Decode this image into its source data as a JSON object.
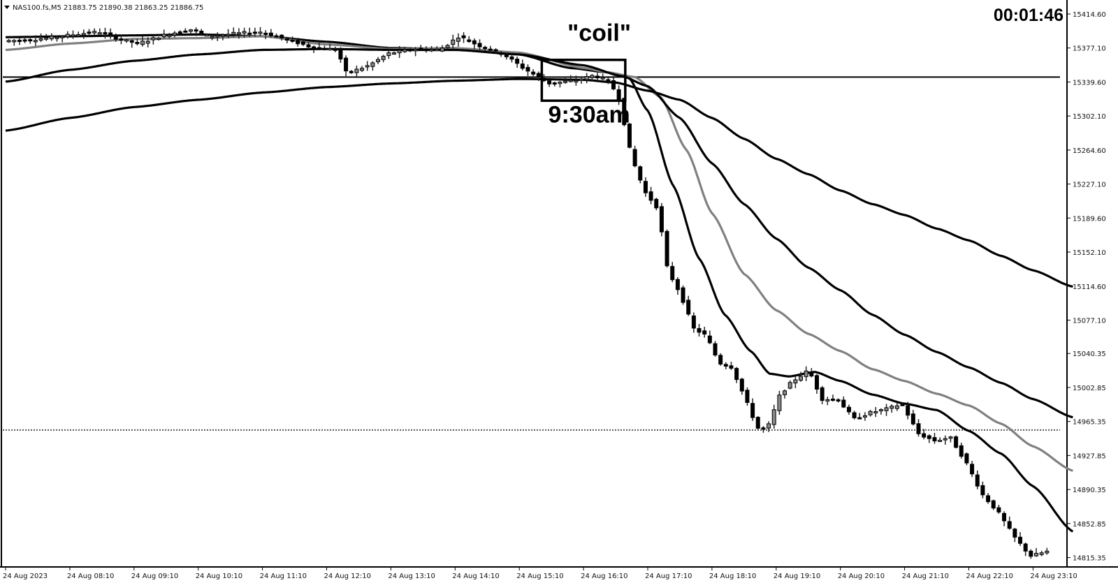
{
  "header": {
    "symbol_line": "NAS100.fs,M5  21883.75 21890.38 21863.25 21886.75",
    "countdown": "00:01:46"
  },
  "chart_data": {
    "type": "candlestick",
    "y_ticks": [
      "15414.60",
      "15377.10",
      "15339.60",
      "15302.10",
      "15264.60",
      "15227.10",
      "15189.60",
      "15152.10",
      "15114.60",
      "15077.10",
      "15040.35",
      "15002.85",
      "14965.35",
      "14927.85",
      "14890.35",
      "14852.85",
      "14815.35"
    ],
    "x_ticks": [
      "24 Aug 2023",
      "24 Aug 08:10",
      "24 Aug 09:10",
      "24 Aug 10:10",
      "24 Aug 11:10",
      "24 Aug 12:10",
      "24 Aug 13:10",
      "24 Aug 14:10",
      "24 Aug 15:10",
      "24 Aug 16:10",
      "24 Aug 17:10",
      "24 Aug 18:10",
      "24 Aug 19:10",
      "24 Aug 20:10",
      "24 Aug 21:10",
      "24 Aug 22:10",
      "24 Aug 23:10"
    ],
    "ylim": [
      14805,
      15430
    ],
    "horizontal_lines": [
      {
        "price": 15345.0,
        "style": "solid"
      },
      {
        "price": 14956.0,
        "style": "dotted"
      }
    ],
    "annotations": [
      {
        "text": "\"coil\"",
        "x": 8.75,
        "y": 15385
      },
      {
        "text": "9:30am",
        "x": 8.45,
        "y": 15295
      }
    ],
    "coil_box": {
      "x0": 8.35,
      "x1": 9.65,
      "y0": 15319,
      "y1": 15364
    },
    "price_path": [
      [
        0.0,
        15385
      ],
      [
        0.4,
        15386
      ],
      [
        0.8,
        15389
      ],
      [
        1.2,
        15393
      ],
      [
        1.5,
        15395
      ],
      [
        1.8,
        15387
      ],
      [
        2.1,
        15382
      ],
      [
        2.5,
        15391
      ],
      [
        2.9,
        15398
      ],
      [
        3.2,
        15390
      ],
      [
        3.6,
        15393
      ],
      [
        4.0,
        15395
      ],
      [
        4.4,
        15387
      ],
      [
        4.8,
        15378
      ],
      [
        5.2,
        15375
      ],
      [
        5.35,
        15349
      ],
      [
        5.7,
        15358
      ],
      [
        6.0,
        15371
      ],
      [
        6.4,
        15376
      ],
      [
        6.8,
        15375
      ],
      [
        7.1,
        15390
      ],
      [
        7.4,
        15380
      ],
      [
        7.8,
        15370
      ],
      [
        8.1,
        15355
      ],
      [
        8.5,
        15338
      ],
      [
        8.9,
        15341
      ],
      [
        9.2,
        15347
      ],
      [
        9.45,
        15340
      ],
      [
        9.6,
        15320
      ],
      [
        9.75,
        15268
      ],
      [
        9.85,
        15245
      ],
      [
        10.0,
        15218
      ],
      [
        10.2,
        15200
      ],
      [
        10.35,
        15132
      ],
      [
        10.55,
        15106
      ],
      [
        10.75,
        15068
      ],
      [
        10.95,
        15060
      ],
      [
        11.15,
        15030
      ],
      [
        11.35,
        15025
      ],
      [
        11.55,
        14992
      ],
      [
        11.75,
        14958
      ],
      [
        11.9,
        14957
      ],
      [
        12.1,
        14995
      ],
      [
        12.3,
        15010
      ],
      [
        12.55,
        15022
      ],
      [
        12.75,
        14990
      ],
      [
        13.0,
        14990
      ],
      [
        13.25,
        14968
      ],
      [
        13.5,
        14975
      ],
      [
        13.8,
        14980
      ],
      [
        14.0,
        14985
      ],
      [
        14.25,
        14952
      ],
      [
        14.5,
        14944
      ],
      [
        14.75,
        14948
      ],
      [
        15.0,
        14920
      ],
      [
        15.25,
        14885
      ],
      [
        15.5,
        14865
      ],
      [
        15.75,
        14838
      ],
      [
        16.0,
        14817
      ],
      [
        16.25,
        14822
      ]
    ],
    "moving_averages": [
      {
        "color": "#000000",
        "points": [
          [
            0.0,
            15389
          ],
          [
            1.0,
            15390
          ],
          [
            2.0,
            15391
          ],
          [
            3.0,
            15392
          ],
          [
            4.0,
            15390
          ],
          [
            5.0,
            15384
          ],
          [
            6.0,
            15377
          ],
          [
            7.0,
            15376
          ],
          [
            8.0,
            15370
          ],
          [
            8.8,
            15355
          ],
          [
            9.4,
            15350
          ],
          [
            9.7,
            15345
          ],
          [
            10.0,
            15308
          ],
          [
            10.4,
            15225
          ],
          [
            10.8,
            15145
          ],
          [
            11.2,
            15083
          ],
          [
            11.6,
            15043
          ],
          [
            11.9,
            15018
          ],
          [
            12.2,
            15015
          ],
          [
            12.6,
            15020
          ],
          [
            13.0,
            15010
          ],
          [
            13.5,
            14995
          ],
          [
            14.0,
            14985
          ],
          [
            14.5,
            14978
          ],
          [
            15.0,
            14955
          ],
          [
            15.5,
            14930
          ],
          [
            16.0,
            14894
          ],
          [
            16.62,
            14844
          ]
        ]
      },
      {
        "color": "#808080",
        "points": [
          [
            0.0,
            15375
          ],
          [
            1.0,
            15382
          ],
          [
            2.0,
            15387
          ],
          [
            3.0,
            15388
          ],
          [
            4.0,
            15390
          ],
          [
            5.0,
            15381
          ],
          [
            6.0,
            15376
          ],
          [
            7.0,
            15377
          ],
          [
            8.0,
            15372
          ],
          [
            9.0,
            15355
          ],
          [
            9.4,
            15350
          ],
          [
            9.8,
            15345
          ],
          [
            10.2,
            15323
          ],
          [
            10.6,
            15265
          ],
          [
            11.0,
            15195
          ],
          [
            11.5,
            15128
          ],
          [
            12.0,
            15088
          ],
          [
            12.5,
            15062
          ],
          [
            13.0,
            15043
          ],
          [
            13.5,
            15023
          ],
          [
            14.0,
            15010
          ],
          [
            14.5,
            14996
          ],
          [
            15.0,
            14983
          ],
          [
            15.5,
            14963
          ],
          [
            16.0,
            14938
          ],
          [
            16.62,
            14911
          ]
        ]
      },
      {
        "color": "#000000",
        "points": [
          [
            0.0,
            15340
          ],
          [
            1.0,
            15353
          ],
          [
            2.0,
            15363
          ],
          [
            3.0,
            15370
          ],
          [
            4.0,
            15375
          ],
          [
            5.0,
            15376
          ],
          [
            6.0,
            15375
          ],
          [
            7.0,
            15375
          ],
          [
            8.0,
            15370
          ],
          [
            9.0,
            15358
          ],
          [
            9.6,
            15346
          ],
          [
            10.0,
            15335
          ],
          [
            10.5,
            15300
          ],
          [
            11.0,
            15250
          ],
          [
            11.5,
            15205
          ],
          [
            12.0,
            15167
          ],
          [
            12.5,
            15135
          ],
          [
            13.0,
            15110
          ],
          [
            13.5,
            15083
          ],
          [
            14.0,
            15061
          ],
          [
            14.5,
            15042
          ],
          [
            15.0,
            15025
          ],
          [
            15.5,
            15008
          ],
          [
            16.0,
            14990
          ],
          [
            16.62,
            14970
          ]
        ]
      },
      {
        "color": "#000000",
        "points": [
          [
            0.0,
            15286
          ],
          [
            1.0,
            15300
          ],
          [
            2.0,
            15312
          ],
          [
            3.0,
            15320
          ],
          [
            4.0,
            15328
          ],
          [
            5.0,
            15334
          ],
          [
            6.0,
            15338
          ],
          [
            7.0,
            15341
          ],
          [
            8.0,
            15343
          ],
          [
            9.0,
            15342
          ],
          [
            9.5,
            15339
          ],
          [
            10.0,
            15330
          ],
          [
            10.5,
            15320
          ],
          [
            11.0,
            15300
          ],
          [
            11.5,
            15277
          ],
          [
            12.0,
            15255
          ],
          [
            12.5,
            15238
          ],
          [
            13.0,
            15220
          ],
          [
            13.5,
            15205
          ],
          [
            14.0,
            15193
          ],
          [
            14.5,
            15178
          ],
          [
            15.0,
            15165
          ],
          [
            15.5,
            15148
          ],
          [
            16.0,
            15132
          ],
          [
            16.62,
            15114
          ]
        ]
      }
    ]
  }
}
